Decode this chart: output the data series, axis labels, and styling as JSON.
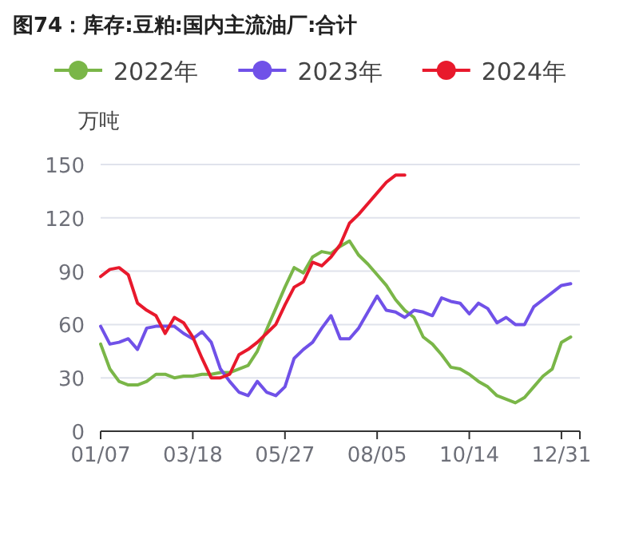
{
  "chart_data": {
    "type": "line",
    "title": "图74：库存:豆粕:国内主流油厂:合计",
    "ylabel": "万吨",
    "categories": [
      "01/07",
      null,
      null,
      null,
      null,
      null,
      null,
      null,
      null,
      null,
      "03/18",
      null,
      null,
      null,
      null,
      null,
      null,
      null,
      null,
      null,
      "05/27",
      null,
      null,
      null,
      null,
      null,
      null,
      null,
      null,
      null,
      "08/05",
      null,
      null,
      null,
      null,
      null,
      null,
      null,
      null,
      null,
      "10/14",
      null,
      null,
      null,
      null,
      null,
      null,
      null,
      null,
      null,
      "12/31",
      null,
      null
    ],
    "series": [
      {
        "name": "2022年",
        "color": "#7ab648",
        "values": [
          49,
          35,
          28,
          26,
          26,
          28,
          32,
          32,
          30,
          31,
          31,
          32,
          32,
          33,
          33,
          35,
          37,
          45,
          57,
          69,
          81,
          92,
          89,
          98,
          101,
          100,
          104,
          107,
          99,
          94,
          88,
          82,
          74,
          68,
          64,
          53,
          49,
          43,
          36,
          35,
          32,
          28,
          25,
          20,
          18,
          16,
          19,
          25,
          31,
          35,
          50,
          53,
          null
        ]
      },
      {
        "name": "2023年",
        "color": "#7051e8",
        "values": [
          59,
          49,
          50,
          52,
          46,
          58,
          59,
          59,
          59,
          55,
          52,
          56,
          50,
          35,
          28,
          22,
          20,
          28,
          22,
          20,
          25,
          41,
          46,
          50,
          58,
          65,
          52,
          52,
          58,
          67,
          76,
          68,
          67,
          64,
          68,
          67,
          65,
          75,
          73,
          72,
          66,
          72,
          69,
          61,
          64,
          60,
          60,
          70,
          74,
          78,
          82,
          83,
          null
        ]
      },
      {
        "name": "2024年",
        "color": "#e8192c",
        "values": [
          87,
          91,
          92,
          88,
          72,
          68,
          65,
          55,
          64,
          61,
          53,
          41,
          30,
          30,
          32,
          43,
          46,
          50,
          55,
          60,
          71,
          81,
          84,
          95,
          93,
          98,
          105,
          117,
          122,
          128,
          134,
          140,
          144,
          144,
          null,
          null,
          null,
          null,
          null,
          null,
          null,
          null,
          null,
          null,
          null,
          null,
          null,
          null,
          null,
          null,
          null,
          null,
          null
        ]
      }
    ],
    "ylim": [
      0,
      150
    ],
    "yticks": [
      0,
      30,
      60,
      90,
      120,
      150
    ],
    "grid": "y",
    "legend": "top",
    "marker": "none",
    "line_style": "solid"
  }
}
